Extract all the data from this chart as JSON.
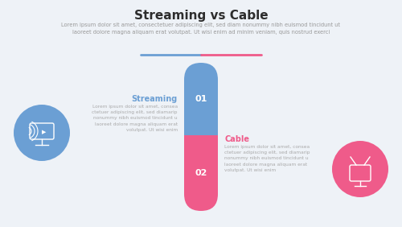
{
  "title": "Streaming vs Cable",
  "subtitle": "Lorem ipsum dolor sit amet, consectetuer adipiscing elit, sed diam nonummy nibh euismod tincidunt ut\nlaoreet dolore magna aliquam erat volutpat. Ut wisi enim ad minim veniam, quis nostrud exerci",
  "bg_color": "#eef2f7",
  "bar_blue_color": "#6b9fd4",
  "bar_pink_color": "#ef5b8a",
  "streaming_label": "Streaming",
  "streaming_num": "01",
  "streaming_text": "Lorem ipsum dolor sit amet, consea\nctetuer adipiscing elit, sed diamarip\nnonummy nibh euismod tincidunt u\nlaoreet dolore magna aliquam erat\nvolutpat. Ut wisi enim",
  "cable_label": "Cable",
  "cable_num": "02",
  "cable_text": "Lorem ipsum dolor sit amet, consea\nctetuer adipiscing elit, sed diamarip\nnonummy nibh euismod tincidunt u\nlaoreet dolore magna aliquam erat\nvolutpat. Ut wisi enim",
  "divider_blue": "#6b9fd4",
  "divider_pink": "#ef5b8a",
  "icon_blue_color": "#6b9fd4",
  "icon_pink_color": "#ef5b8a",
  "title_color": "#2d2d2d",
  "subtitle_color": "#999999",
  "streaming_label_color": "#6b9fd4",
  "cable_label_color": "#ef5b8a",
  "num_color": "#ffffff",
  "text_color": "#aaaaaa",
  "fig_w": 5.0,
  "fig_h": 2.82,
  "dpi": 100
}
